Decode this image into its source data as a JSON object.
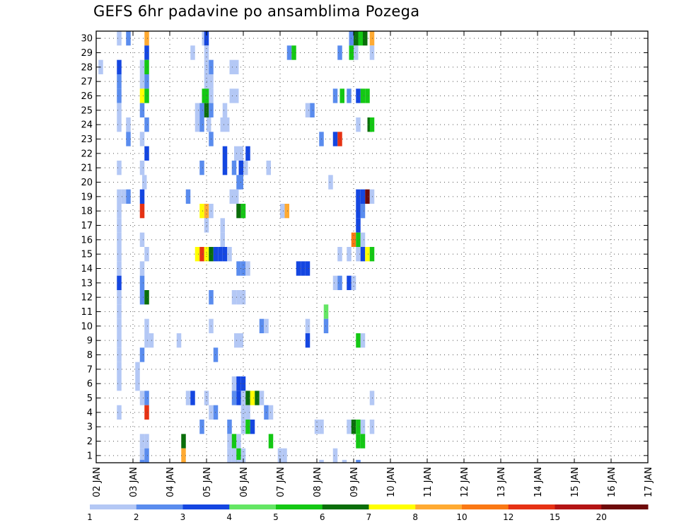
{
  "chart_data": {
    "type": "heatmap",
    "title": "GEFS 6hr padavine po ansamblima Pozega",
    "xlabel": "",
    "ylabel": "",
    "x_ticks": [
      "02 JAN",
      "03 JAN",
      "04 JAN",
      "05 JAN",
      "06 JAN",
      "07 JAN",
      "08 JAN",
      "09 JAN",
      "10 JAN",
      "11 JAN",
      "12 JAN",
      "13 JAN",
      "14 JAN",
      "15 JAN",
      "16 JAN",
      "17 JAN"
    ],
    "y_ticks": [
      1,
      2,
      3,
      4,
      5,
      6,
      7,
      8,
      9,
      10,
      11,
      12,
      13,
      14,
      15,
      16,
      17,
      18,
      19,
      20,
      21,
      22,
      23,
      24,
      25,
      26,
      27,
      28,
      29,
      30
    ],
    "xlim": [
      0,
      60
    ],
    "ylim": [
      0.5,
      30.5
    ],
    "grid": true,
    "colorbar": {
      "labels": [
        "1",
        "2",
        "3",
        "4",
        "5",
        "6",
        "7",
        "8",
        "10",
        "12",
        "15",
        "20"
      ],
      "colors": [
        "#b4c8f5",
        "#5a8cee",
        "#1446e1",
        "#64e664",
        "#14c814",
        "#0a6e0a",
        "#ffff00",
        "#ffaa32",
        "#fa7814",
        "#e63214",
        "#b41414",
        "#6e0a0a"
      ]
    },
    "cells": [
      [
        2.25,
        30,
        1
      ],
      [
        3.25,
        30,
        2
      ],
      [
        5.25,
        30,
        8
      ],
      [
        11.5,
        30,
        1
      ],
      [
        11.75,
        30,
        3
      ],
      [
        27.5,
        30,
        2
      ],
      [
        28,
        30,
        6
      ],
      [
        28.5,
        30,
        5
      ],
      [
        29,
        30,
        6
      ],
      [
        29.75,
        30,
        8
      ],
      [
        5.25,
        29,
        3
      ],
      [
        10.25,
        29,
        1
      ],
      [
        11.75,
        29,
        1
      ],
      [
        20.75,
        29,
        2
      ],
      [
        21.25,
        29,
        5
      ],
      [
        26.25,
        29,
        2
      ],
      [
        27.5,
        29,
        5
      ],
      [
        28,
        29,
        1
      ],
      [
        29.75,
        29,
        1
      ],
      [
        0.25,
        28,
        1
      ],
      [
        2.25,
        28,
        3
      ],
      [
        4.75,
        28,
        1
      ],
      [
        5.25,
        28,
        5
      ],
      [
        11.75,
        28,
        1
      ],
      [
        12.25,
        28,
        2
      ],
      [
        14.5,
        28,
        1
      ],
      [
        15,
        28,
        1
      ],
      [
        2.25,
        27,
        2
      ],
      [
        4.75,
        27,
        1
      ],
      [
        5.25,
        27,
        2
      ],
      [
        11.75,
        27,
        1
      ],
      [
        12.25,
        27,
        1
      ],
      [
        2.25,
        26,
        2
      ],
      [
        4.75,
        26,
        7
      ],
      [
        5.25,
        26,
        5
      ],
      [
        11.5,
        26,
        5
      ],
      [
        12,
        26,
        5
      ],
      [
        12.25,
        26,
        1
      ],
      [
        14.5,
        26,
        1
      ],
      [
        15,
        26,
        1
      ],
      [
        25.75,
        26,
        2
      ],
      [
        26.5,
        26,
        5
      ],
      [
        27.25,
        26,
        2
      ],
      [
        28.25,
        26,
        3
      ],
      [
        28.75,
        26,
        5
      ],
      [
        29.25,
        26,
        5
      ],
      [
        2.25,
        25,
        1
      ],
      [
        4.75,
        25,
        2
      ],
      [
        10.75,
        25,
        1
      ],
      [
        11.25,
        25,
        2
      ],
      [
        11.75,
        25,
        6
      ],
      [
        12.25,
        25,
        2
      ],
      [
        13.75,
        25,
        1
      ],
      [
        22.75,
        25,
        1
      ],
      [
        23.25,
        25,
        2
      ],
      [
        2.25,
        24,
        1
      ],
      [
        3.25,
        24,
        1
      ],
      [
        5.25,
        24,
        2
      ],
      [
        10.75,
        24,
        1
      ],
      [
        11.25,
        24,
        2
      ],
      [
        12,
        24,
        1
      ],
      [
        13.5,
        24,
        1
      ],
      [
        14,
        24,
        1
      ],
      [
        28.25,
        24,
        1
      ],
      [
        29.5,
        24,
        6
      ],
      [
        29.75,
        24,
        5
      ],
      [
        3.25,
        23,
        2
      ],
      [
        4.75,
        23,
        1
      ],
      [
        12.25,
        23,
        2
      ],
      [
        24.25,
        23,
        2
      ],
      [
        25.75,
        23,
        3
      ],
      [
        26.25,
        23,
        10
      ],
      [
        5.25,
        22,
        3
      ],
      [
        13.75,
        22,
        3
      ],
      [
        15,
        22,
        1
      ],
      [
        15.5,
        22,
        1
      ],
      [
        16.25,
        22,
        3
      ],
      [
        2.25,
        21,
        1
      ],
      [
        4.75,
        21,
        1
      ],
      [
        11.25,
        21,
        2
      ],
      [
        13.75,
        21,
        3
      ],
      [
        14.75,
        21,
        2
      ],
      [
        15.5,
        21,
        3
      ],
      [
        16,
        21,
        1
      ],
      [
        18.5,
        21,
        1
      ],
      [
        5,
        20,
        1
      ],
      [
        15.25,
        20,
        2
      ],
      [
        15.5,
        20,
        2
      ],
      [
        25.25,
        20,
        1
      ],
      [
        2.25,
        19,
        1
      ],
      [
        2.75,
        19,
        1
      ],
      [
        3.25,
        19,
        2
      ],
      [
        4.75,
        19,
        3
      ],
      [
        9.75,
        19,
        2
      ],
      [
        14.5,
        19,
        1
      ],
      [
        15,
        19,
        1
      ],
      [
        28.25,
        19,
        3
      ],
      [
        28.75,
        19,
        3
      ],
      [
        29.25,
        19,
        12
      ],
      [
        29.75,
        19,
        1
      ],
      [
        2.25,
        18,
        1
      ],
      [
        4.75,
        18,
        10
      ],
      [
        11.25,
        18,
        7
      ],
      [
        11.75,
        18,
        8
      ],
      [
        12.25,
        18,
        1
      ],
      [
        15.25,
        18,
        6
      ],
      [
        15.75,
        18,
        5
      ],
      [
        20,
        18,
        1
      ],
      [
        20.5,
        18,
        8
      ],
      [
        28.25,
        18,
        3
      ],
      [
        28.75,
        18,
        2
      ],
      [
        2.25,
        17,
        1
      ],
      [
        11.75,
        17,
        1
      ],
      [
        13.5,
        17,
        1
      ],
      [
        28.25,
        17,
        3
      ],
      [
        2.25,
        16,
        1
      ],
      [
        4.75,
        16,
        1
      ],
      [
        13.5,
        16,
        1
      ],
      [
        27.75,
        16,
        9
      ],
      [
        28.25,
        16,
        5
      ],
      [
        28.75,
        16,
        1
      ],
      [
        2.25,
        15,
        1
      ],
      [
        5.25,
        15,
        1
      ],
      [
        10.75,
        15,
        7
      ],
      [
        11.25,
        15,
        10
      ],
      [
        11.75,
        15,
        7
      ],
      [
        12.25,
        15,
        6
      ],
      [
        12.75,
        15,
        3
      ],
      [
        13.25,
        15,
        3
      ],
      [
        13.75,
        15,
        3
      ],
      [
        14.25,
        15,
        1
      ],
      [
        26.25,
        15,
        1
      ],
      [
        27.25,
        15,
        1
      ],
      [
        28.25,
        15,
        1
      ],
      [
        28.75,
        15,
        3
      ],
      [
        29.25,
        15,
        7
      ],
      [
        29.75,
        15,
        5
      ],
      [
        2.25,
        14,
        1
      ],
      [
        4.75,
        14,
        1
      ],
      [
        15.25,
        14,
        2
      ],
      [
        15.75,
        14,
        2
      ],
      [
        16.25,
        14,
        1
      ],
      [
        21.75,
        14,
        3
      ],
      [
        22.25,
        14,
        3
      ],
      [
        22.75,
        14,
        3
      ],
      [
        2.25,
        13,
        3
      ],
      [
        4.75,
        13,
        2
      ],
      [
        25.75,
        13,
        1
      ],
      [
        26.25,
        13,
        2
      ],
      [
        27.25,
        13,
        3
      ],
      [
        27.75,
        13,
        1
      ],
      [
        2.25,
        12,
        1
      ],
      [
        4.75,
        12,
        2
      ],
      [
        5.25,
        12,
        6
      ],
      [
        12.25,
        12,
        2
      ],
      [
        14.75,
        12,
        1
      ],
      [
        15.25,
        12,
        1
      ],
      [
        15.75,
        12,
        1
      ],
      [
        2.25,
        11,
        1
      ],
      [
        24.75,
        11,
        4
      ],
      [
        2.25,
        10,
        1
      ],
      [
        5.25,
        10,
        1
      ],
      [
        12.25,
        10,
        1
      ],
      [
        17.75,
        10,
        2
      ],
      [
        18.25,
        10,
        1
      ],
      [
        22.75,
        10,
        1
      ],
      [
        24.75,
        10,
        2
      ],
      [
        2.25,
        9,
        1
      ],
      [
        5.25,
        9,
        1
      ],
      [
        5.75,
        9,
        1
      ],
      [
        8.75,
        9,
        1
      ],
      [
        15,
        9,
        1
      ],
      [
        15.5,
        9,
        1
      ],
      [
        22.75,
        9,
        3
      ],
      [
        28.25,
        9,
        5
      ],
      [
        28.75,
        9,
        1
      ],
      [
        2.25,
        8,
        1
      ],
      [
        4.75,
        8,
        2
      ],
      [
        12.75,
        8,
        2
      ],
      [
        2.25,
        7,
        1
      ],
      [
        4.25,
        7,
        1
      ],
      [
        2.25,
        6,
        1
      ],
      [
        4.25,
        6,
        1
      ],
      [
        14.75,
        6,
        1
      ],
      [
        15.25,
        6,
        3
      ],
      [
        15.75,
        6,
        3
      ],
      [
        4.75,
        5,
        1
      ],
      [
        5.25,
        5,
        2
      ],
      [
        9.75,
        5,
        1
      ],
      [
        10.25,
        5,
        3
      ],
      [
        11.75,
        5,
        1
      ],
      [
        14.75,
        5,
        2
      ],
      [
        15.25,
        5,
        3
      ],
      [
        15.75,
        5,
        1
      ],
      [
        16.25,
        5,
        6
      ],
      [
        16.75,
        5,
        7
      ],
      [
        17.25,
        5,
        6
      ],
      [
        17.75,
        5,
        1
      ],
      [
        29.75,
        5,
        1
      ],
      [
        2.25,
        4,
        1
      ],
      [
        5.25,
        4,
        10
      ],
      [
        12.25,
        4,
        1
      ],
      [
        12.75,
        4,
        2
      ],
      [
        15.75,
        4,
        1
      ],
      [
        16.25,
        4,
        1
      ],
      [
        18.25,
        4,
        2
      ],
      [
        18.75,
        4,
        1
      ],
      [
        11.25,
        3,
        2
      ],
      [
        14.25,
        3,
        2
      ],
      [
        15.75,
        3,
        1
      ],
      [
        16.25,
        3,
        5
      ],
      [
        16.75,
        3,
        3
      ],
      [
        23.75,
        3,
        1
      ],
      [
        24.25,
        3,
        1
      ],
      [
        27.25,
        3,
        1
      ],
      [
        27.75,
        3,
        6
      ],
      [
        28.25,
        3,
        5
      ],
      [
        28.75,
        3,
        1
      ],
      [
        29.75,
        3,
        1
      ],
      [
        4.75,
        2,
        1
      ],
      [
        5.25,
        2,
        1
      ],
      [
        9.25,
        2,
        6
      ],
      [
        14.25,
        2,
        1
      ],
      [
        14.75,
        2,
        5
      ],
      [
        15.25,
        2,
        1
      ],
      [
        18.75,
        2,
        5
      ],
      [
        28.25,
        2,
        5
      ],
      [
        28.75,
        2,
        5
      ],
      [
        4.75,
        1,
        1
      ],
      [
        5.25,
        1,
        2
      ],
      [
        9.25,
        1,
        8
      ],
      [
        14.25,
        1,
        1
      ],
      [
        14.75,
        1,
        1
      ],
      [
        15.25,
        1,
        5
      ],
      [
        15.75,
        1,
        1
      ],
      [
        19.75,
        1,
        1
      ],
      [
        20.25,
        1,
        1
      ],
      [
        25.75,
        1,
        1
      ],
      [
        4.75,
        0.2,
        2
      ],
      [
        15.25,
        0.2,
        1
      ],
      [
        24.25,
        0.2,
        1
      ],
      [
        26.75,
        0.2,
        1
      ],
      [
        28.25,
        0.2,
        2
      ]
    ]
  }
}
